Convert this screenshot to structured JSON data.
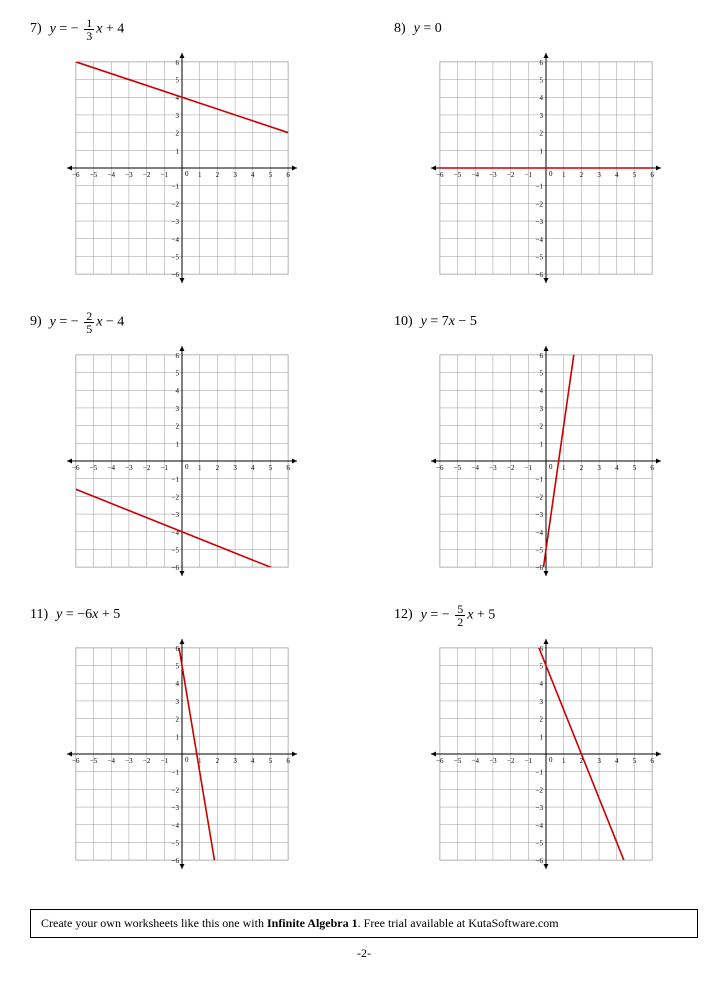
{
  "graph": {
    "size": 230,
    "range": 6.5,
    "grid_step": 1,
    "grid_color": "#999999",
    "axis_color": "#000000",
    "line_color": "#cc0000",
    "background": "#ffffff",
    "tick_font_size": 7,
    "tick_min": -6,
    "tick_max": 6,
    "line_width": 1.6
  },
  "problems": [
    {
      "number": "7)",
      "eq_html": "<span class='eq-prefix'>y</span> = − <span class='frac'><span class='num'>1</span><span class='den'>3</span></span><span class='eq-prefix'>x</span> + 4",
      "line": {
        "x1": -6.5,
        "y1": 6.1667,
        "x2": 6.5,
        "y2": 1.8333
      }
    },
    {
      "number": "8)",
      "eq_html": "<span class='eq-prefix'>y</span> = 0",
      "line": {
        "x1": -6.5,
        "y1": 0,
        "x2": 6.5,
        "y2": 0
      }
    },
    {
      "number": "9)",
      "eq_html": "<span class='eq-prefix'>y</span> = − <span class='frac'><span class='num'>2</span><span class='den'>5</span></span><span class='eq-prefix'>x</span> − 4",
      "line": {
        "x1": -6.25,
        "y1": -1.5,
        "x2": 6.25,
        "y2": -6.5
      }
    },
    {
      "number": "10)",
      "eq_html": "<span class='eq-prefix'>y</span> = 7<span class='eq-prefix'>x</span> − 5",
      "line": {
        "x1": -0.2143,
        "y1": -6.5,
        "x2": 1.6429,
        "y2": 6.5
      }
    },
    {
      "number": "11)",
      "eq_html": "<span class='eq-prefix'>y</span> = −6<span class='eq-prefix'>x</span> + 5",
      "line": {
        "x1": -0.25,
        "y1": 6.5,
        "x2": 1.9167,
        "y2": -6.5
      }
    },
    {
      "number": "12)",
      "eq_html": "<span class='eq-prefix'>y</span> = − <span class='frac'><span class='num'>5</span><span class='den'>2</span></span><span class='eq-prefix'>x</span> + 5",
      "line": {
        "x1": -0.6,
        "y1": 6.5,
        "x2": 4.6,
        "y2": -6.5
      }
    }
  ],
  "footer": {
    "prefix": "Create your own worksheets like this one with ",
    "bold": "Infinite Algebra 1",
    "suffix": ".  Free trial available at KutaSoftware.com"
  },
  "page_number": "-2-"
}
